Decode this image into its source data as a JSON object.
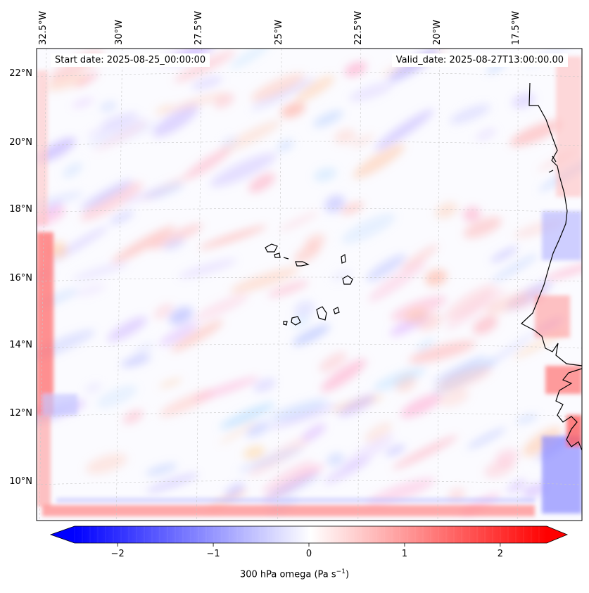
{
  "map": {
    "start_date": "Start date: 2025-08-25_00:00:00",
    "valid_date": "Valid_date: 2025-08-27T13:00:00.00",
    "lon_labels": [
      "32.5°W",
      "30°W",
      "27.5°W",
      "25°W",
      "22.5°W",
      "20°W",
      "17.5°W"
    ],
    "lat_labels": [
      "22°N",
      "20°N",
      "18°N",
      "16°N",
      "14°N",
      "12°N",
      "10°N"
    ],
    "colormap": "bwr",
    "colors": {
      "negative": "#0000ff",
      "zero": "#ffffff",
      "positive": "#ff0000",
      "coastline": "#000000",
      "grid": "#b0b0b0"
    }
  },
  "colorbar": {
    "ticks": [
      "−2",
      "−1",
      "0",
      "1",
      "2"
    ],
    "label_main": "300 hPa omega (Pa s",
    "label_sup": "−1",
    "label_end": ")",
    "range": [
      -2.7,
      2.7
    ]
  }
}
